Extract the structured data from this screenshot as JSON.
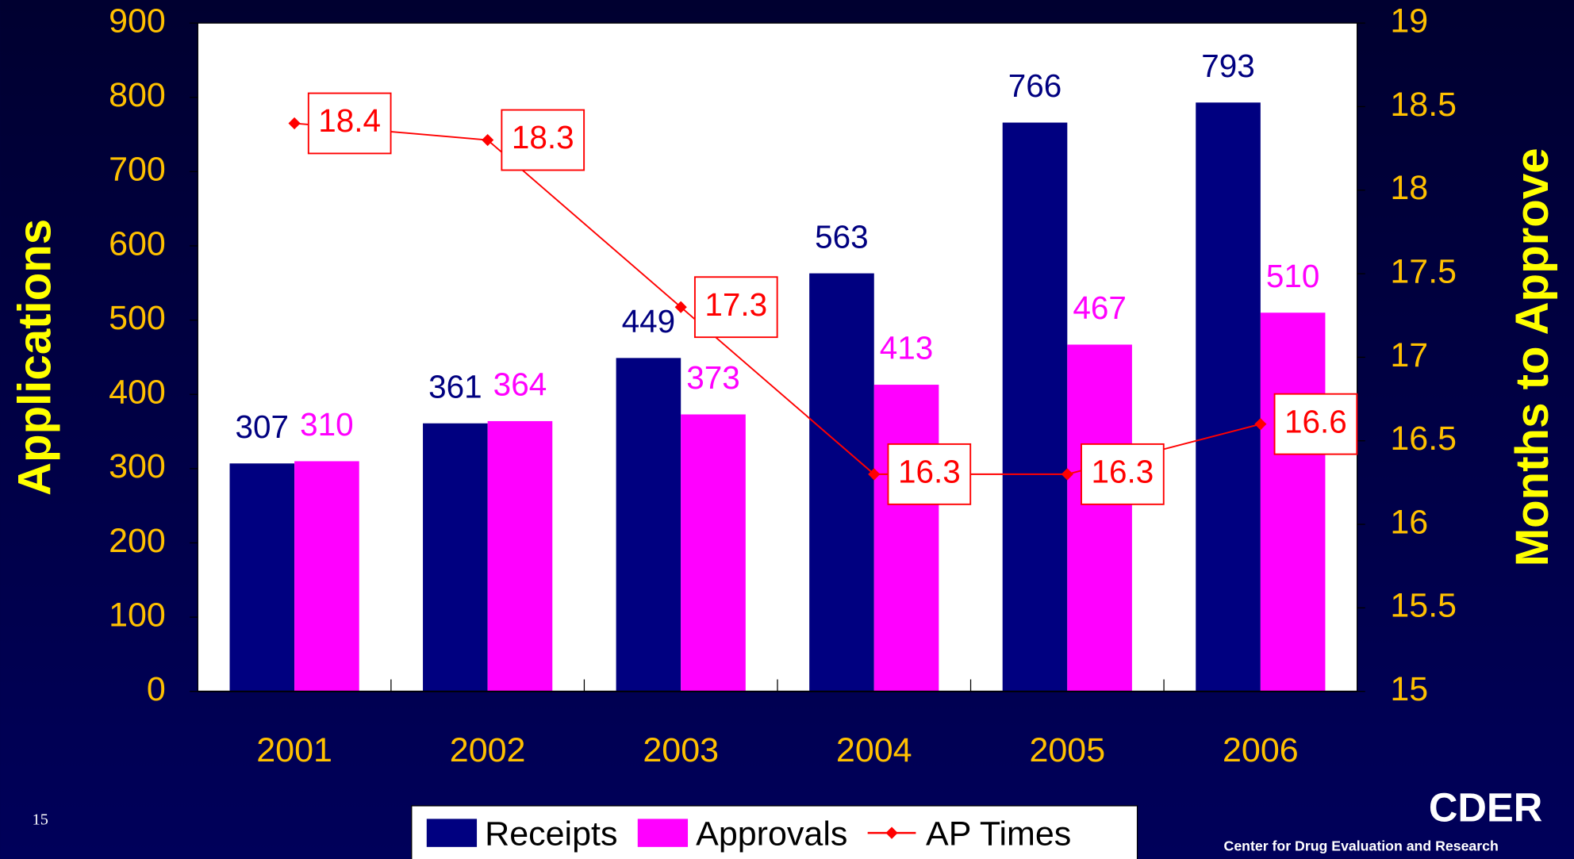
{
  "chart_data": {
    "type": "bar",
    "categories": [
      "2001",
      "2002",
      "2003",
      "2004",
      "2005",
      "2006"
    ],
    "series": [
      {
        "name": "Receipts",
        "color": "#000080",
        "values": [
          307,
          361,
          449,
          563,
          766,
          793
        ]
      },
      {
        "name": "Approvals",
        "color": "#ff00ff",
        "values": [
          310,
          364,
          373,
          413,
          467,
          510
        ]
      },
      {
        "name": "AP Times",
        "color": "#ff0000",
        "type": "line",
        "axis": "y2",
        "values": [
          18.4,
          18.3,
          17.3,
          16.3,
          16.3,
          16.6
        ]
      }
    ],
    "ylabel": "Applications",
    "y2label": "Months to Approve",
    "ylim": [
      0,
      900
    ],
    "yticks": [
      0,
      100,
      200,
      300,
      400,
      500,
      600,
      700,
      800,
      900
    ],
    "y2lim": [
      15,
      19
    ],
    "y2ticks": [
      15,
      15.5,
      16,
      16.5,
      17,
      17.5,
      18,
      18.5,
      19
    ],
    "legend": "bottom",
    "page_number": "15",
    "logo": "CDER",
    "logo_subtitle": "Center for Drug Evaluation and Research"
  }
}
